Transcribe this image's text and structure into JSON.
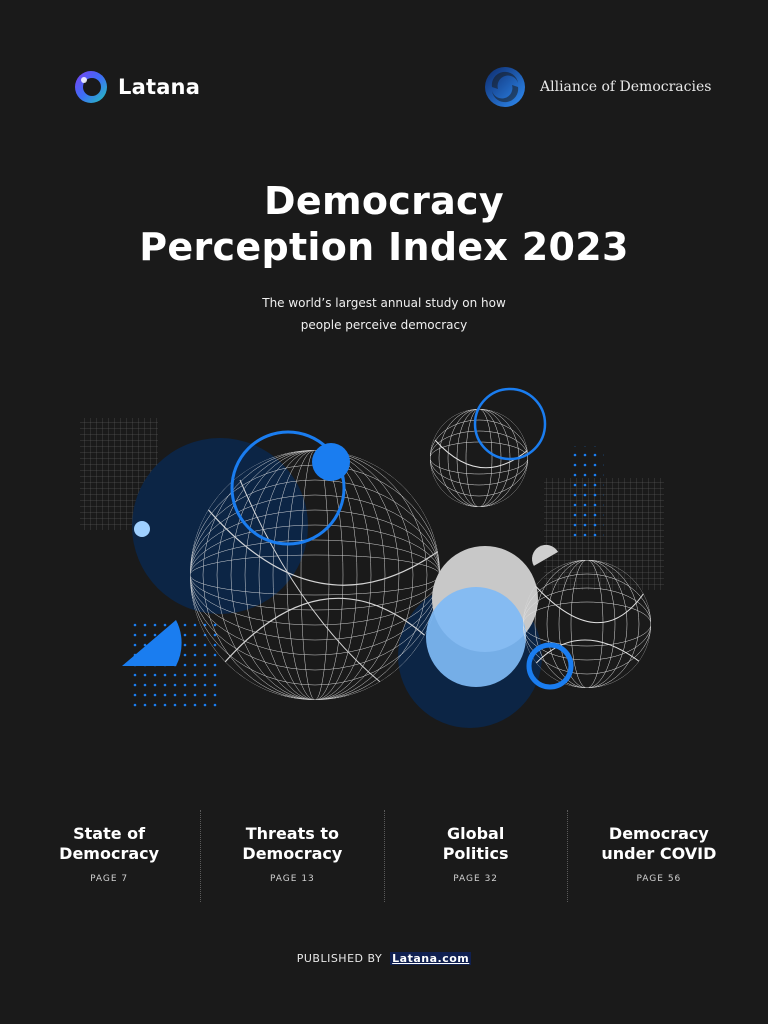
{
  "header": {
    "left_brand": "Latana",
    "right_brand": "Alliance of Democracies"
  },
  "cover": {
    "title_line1": "Democracy",
    "title_line2": "Perception Index 2023",
    "subtitle_line1": "The world’s largest annual study on how",
    "subtitle_line2": "people perceive democracy"
  },
  "toc": [
    {
      "line1": "State of",
      "line2": "Democracy",
      "page": "PAGE  7"
    },
    {
      "line1": "Threats to",
      "line2": "Democracy",
      "page": "PAGE  13"
    },
    {
      "line1": "Global",
      "line2": "Politics",
      "page": "PAGE  32"
    },
    {
      "line1": "Democracy",
      "line2": "under COVID",
      "page": "PAGE  56"
    }
  ],
  "footer": {
    "prefix": "PUBLISHED BY",
    "link": "Latana.com"
  },
  "colors": {
    "background": "#1a1a1a",
    "accent_blue": "#1a7df0",
    "light_blue": "#7fbaf5",
    "navy": "#0c2545"
  },
  "icons": {
    "latana_logo": "latana-ring-logo",
    "alliance_logo": "alliance-swirl-logo"
  }
}
